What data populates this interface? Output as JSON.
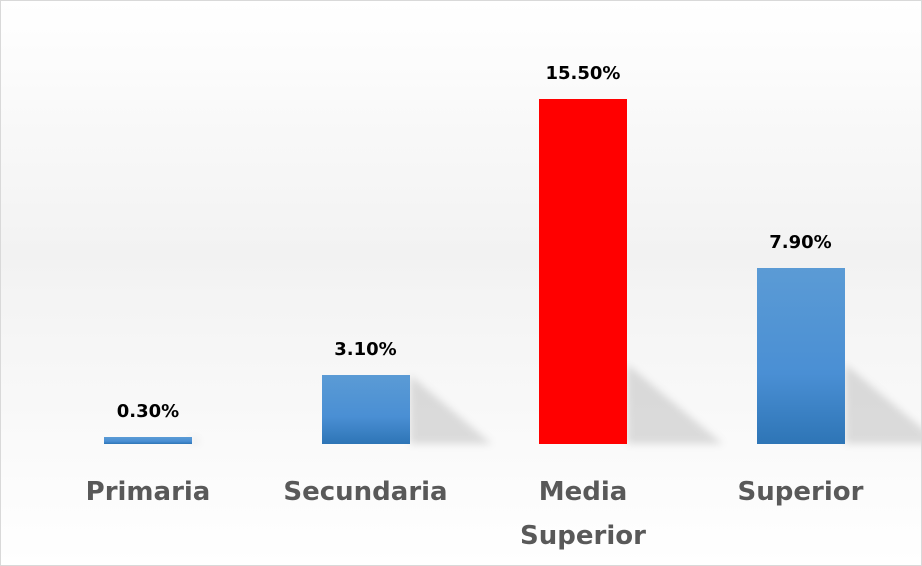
{
  "chart_data": {
    "type": "bar",
    "categories": [
      "Primaria",
      "Secundaria",
      "Media Superior",
      "Superior"
    ],
    "values": [
      0.3,
      3.1,
      15.5,
      7.9
    ],
    "value_labels": [
      "0.30%",
      "3.10%",
      "15.50%",
      "7.90%"
    ],
    "colors": [
      "#4a8fd4",
      "#4a8fd4",
      "#ff0000",
      "#4a8fd4"
    ]
  }
}
